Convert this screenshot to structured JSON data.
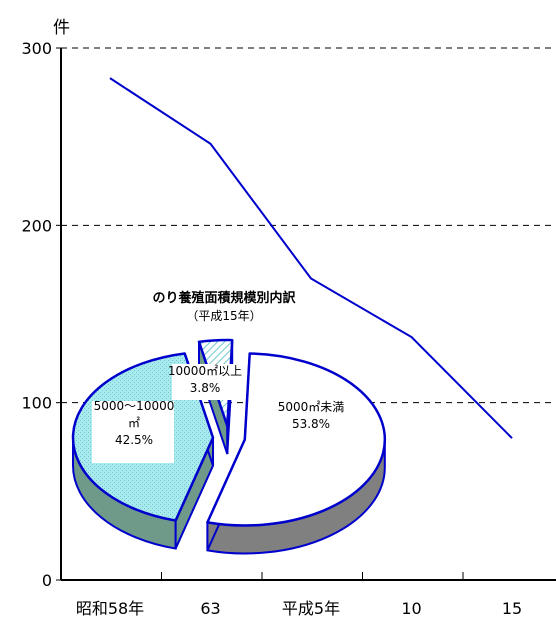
{
  "chart_data": [
    {
      "type": "line",
      "ylabel": "件",
      "categories": [
        "昭和58年",
        "63",
        "平成5年",
        "10",
        "15"
      ],
      "ylim": [
        0,
        300
      ],
      "yticks": [
        0,
        100,
        200,
        300
      ],
      "grid": "horizontal dashed at 100, 200, 300",
      "series": [
        {
          "values": [
            283,
            246,
            170,
            137,
            80
          ],
          "color": "#0000cc"
        }
      ]
    },
    {
      "type": "pie",
      "title": "のり養殖面積規模別内訳",
      "subtitle": "（平成15年）",
      "slices": [
        {
          "label": "5000㎡未満",
          "pct_label": "53.8%",
          "value": 53.8,
          "fill": "#ffffff",
          "side": "#808080"
        },
        {
          "label": "5000～10000\n㎡",
          "pct_label": "42.5%",
          "value": 42.5,
          "fill": "#a8eaee",
          "side": "#6f9a8a"
        },
        {
          "label": "10000㎡以上",
          "pct_label": "3.8%",
          "value": 3.8,
          "fill": "#c6eef2",
          "side": "#6f9a8a"
        }
      ]
    }
  ]
}
